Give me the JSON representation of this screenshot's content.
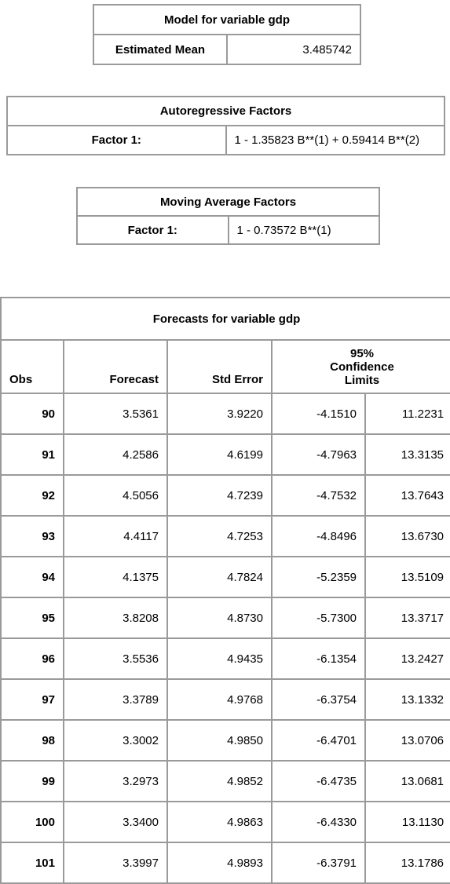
{
  "model_table": {
    "title": "Model for variable gdp",
    "label": "Estimated Mean",
    "value": "3.485742"
  },
  "ar_table": {
    "title": "Autoregressive Factors",
    "label": "Factor 1:",
    "value": "1 - 1.35823 B**(1) + 0.59414 B**(2)"
  },
  "ma_table": {
    "title": "Moving Average Factors",
    "label": "Factor 1:",
    "value": "1 - 0.73572 B**(1)"
  },
  "forecast_table": {
    "title": "Forecasts for variable gdp",
    "columns": [
      "Obs",
      "Forecast",
      "Std Error"
    ],
    "limits_header": "95% Confidence Limits",
    "rows": [
      [
        "90",
        "3.5361",
        "3.9220",
        "-4.1510",
        "11.2231"
      ],
      [
        "91",
        "4.2586",
        "4.6199",
        "-4.7963",
        "13.3135"
      ],
      [
        "92",
        "4.5056",
        "4.7239",
        "-4.7532",
        "13.7643"
      ],
      [
        "93",
        "4.4117",
        "4.7253",
        "-4.8496",
        "13.6730"
      ],
      [
        "94",
        "4.1375",
        "4.7824",
        "-5.2359",
        "13.5109"
      ],
      [
        "95",
        "3.8208",
        "4.8730",
        "-5.7300",
        "13.3717"
      ],
      [
        "96",
        "3.5536",
        "4.9435",
        "-6.1354",
        "13.2427"
      ],
      [
        "97",
        "3.3789",
        "4.9768",
        "-6.3754",
        "13.1332"
      ],
      [
        "98",
        "3.3002",
        "4.9850",
        "-6.4701",
        "13.0706"
      ],
      [
        "99",
        "3.2973",
        "4.9852",
        "-6.4735",
        "13.0681"
      ],
      [
        "100",
        "3.3400",
        "4.9863",
        "-6.4330",
        "13.1130"
      ],
      [
        "101",
        "3.3997",
        "4.9893",
        "-6.3791",
        "13.1786"
      ]
    ]
  }
}
